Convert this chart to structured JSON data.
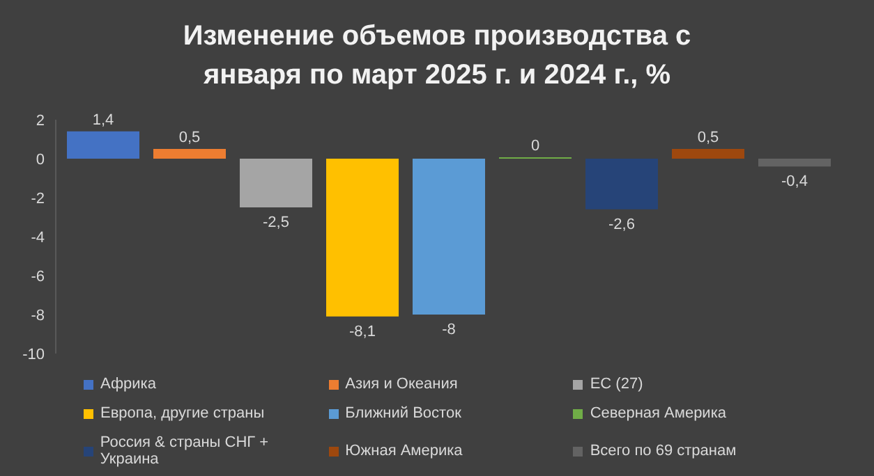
{
  "chart_data": {
    "type": "bar",
    "title": "Изменение объемов производства с января по март 2025 г. и 2024 г., %",
    "categories": [
      null
    ],
    "series": [
      {
        "name": "Африка",
        "color": "#4472c4",
        "values": [
          1.4
        ],
        "value_labels": [
          "1,4"
        ]
      },
      {
        "name": "Азия и Океания",
        "color": "#ed7d31",
        "values": [
          0.5
        ],
        "value_labels": [
          "0,5"
        ]
      },
      {
        "name": "ЕС (27)",
        "color": "#a5a5a5",
        "values": [
          -2.5
        ],
        "value_labels": [
          "-2,5"
        ]
      },
      {
        "name": "Европа, другие страны",
        "color": "#ffc000",
        "values": [
          -8.1
        ],
        "value_labels": [
          "-8,1"
        ]
      },
      {
        "name": "Ближний Восток",
        "color": "#5b9bd5",
        "values": [
          -8
        ],
        "value_labels": [
          "-8"
        ]
      },
      {
        "name": "Северная Америка",
        "color": "#70ad47",
        "values": [
          0
        ],
        "value_labels": [
          "0"
        ]
      },
      {
        "name": "Россия & страны СНГ + Украина",
        "color": "#264478",
        "values": [
          -2.6
        ],
        "value_labels": [
          "-2,6"
        ]
      },
      {
        "name": "Южная Америка",
        "color": "#9e480e",
        "values": [
          0.5
        ],
        "value_labels": [
          "0,5"
        ]
      },
      {
        "name": "Всего по 69 странам",
        "color": "#636363",
        "values": [
          -0.4
        ],
        "value_labels": [
          "-0,4"
        ]
      }
    ],
    "ylim": [
      -10,
      2
    ],
    "yticks": [
      -10,
      -8,
      -6,
      -4,
      -2,
      0,
      2
    ],
    "grid": false,
    "legend": "bottom"
  }
}
